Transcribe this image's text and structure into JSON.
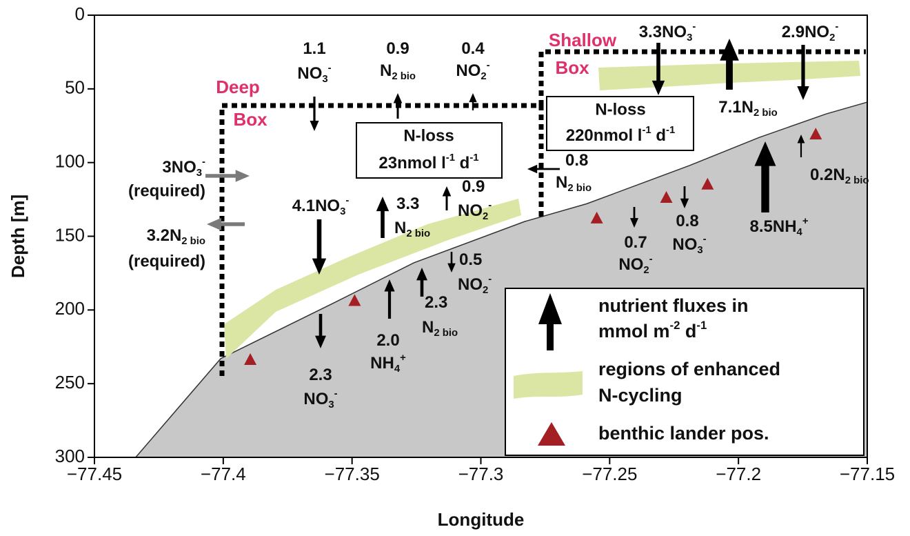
{
  "chart_data": {
    "type": "area",
    "xlabel": "Longitude",
    "ylabel": "Depth [m]",
    "xlim": [
      -77.45,
      -77.15
    ],
    "ylim": [
      0,
      300
    ],
    "y_inverted": true,
    "xticks": [
      {
        "value": -77.45,
        "label": "−77.45"
      },
      {
        "value": -77.4,
        "label": "−77.4"
      },
      {
        "value": -77.35,
        "label": "−77.35"
      },
      {
        "value": -77.3,
        "label": "−77.3"
      },
      {
        "value": -77.25,
        "label": "−77.25"
      },
      {
        "value": -77.2,
        "label": "−77.2"
      },
      {
        "value": -77.15,
        "label": "−77.15"
      }
    ],
    "yticks": [
      0,
      50,
      100,
      150,
      200,
      250,
      300
    ],
    "seafloor": {
      "color": "#c8c8c8",
      "x": [
        -77.434,
        -77.401,
        -77.358,
        -77.326,
        -77.283,
        -77.259,
        -77.219,
        -77.192,
        -77.166,
        -77.15
      ],
      "y": [
        300,
        233,
        196,
        168,
        140,
        128,
        102,
        83,
        67,
        59
      ]
    },
    "landers": {
      "color": "#a31f24",
      "x": [
        -77.3895,
        -77.349,
        -77.255,
        -77.228,
        -77.212,
        -77.17
      ],
      "y": [
        234,
        194,
        138,
        124,
        115,
        81
      ]
    },
    "boxes": [
      {
        "label": [
          "Deep",
          "Box"
        ],
        "loss": "N-loss",
        "rate": 23,
        "unit": [
          {
            "t": "nmol l"
          },
          {
            "sup": "-1"
          },
          {
            "t": " d"
          },
          {
            "sup": "-1"
          }
        ]
      },
      {
        "label": [
          "Shallow",
          "Box"
        ],
        "loss": "N-loss",
        "rate": 220,
        "unit": [
          {
            "t": "nmol l"
          },
          {
            "sup": "-1"
          },
          {
            "t": " d"
          },
          {
            "sup": "-1"
          }
        ]
      }
    ],
    "box_label_color": "#e0306a",
    "band_color": "#dbe6a4",
    "fluxes": [
      {
        "value": 1.1,
        "direction": "down",
        "species": [
          {
            "t": "NO"
          },
          {
            "sub": "3"
          },
          {
            "sup": "-"
          }
        ]
      },
      {
        "value": 0.9,
        "direction": "up",
        "species": [
          {
            "t": "N"
          },
          {
            "sub": "2 bio"
          }
        ]
      },
      {
        "value": 0.4,
        "direction": "up",
        "species": [
          {
            "t": "NO"
          },
          {
            "sub": "2"
          },
          {
            "sup": "-"
          }
        ]
      },
      {
        "value": 3.3,
        "direction": "down",
        "species": [
          {
            "t": "NO"
          },
          {
            "sub": "3"
          },
          {
            "sup": "-"
          }
        ]
      },
      {
        "value": 2.9,
        "direction": "down",
        "species": [
          {
            "t": "NO"
          },
          {
            "sub": "2"
          },
          {
            "sup": "-"
          }
        ]
      },
      {
        "value": 7.1,
        "direction": "up",
        "species": [
          {
            "t": "N"
          },
          {
            "sub": "2 bio"
          }
        ]
      },
      {
        "value": 3,
        "direction": "right",
        "note": "(required)",
        "color": "#7a7a7a",
        "species": [
          {
            "t": "NO"
          },
          {
            "sub": "3"
          },
          {
            "sup": "-"
          }
        ]
      },
      {
        "value": 3.2,
        "direction": "left",
        "note": "(required)",
        "color": "#7a7a7a",
        "species": [
          {
            "t": "N"
          },
          {
            "sub": "2 bio"
          }
        ]
      },
      {
        "value": 0.8,
        "direction": "left",
        "species": [
          {
            "t": "N"
          },
          {
            "sub": "2 bio"
          }
        ]
      },
      {
        "value": 4.1,
        "direction": "down",
        "species": [
          {
            "t": "NO"
          },
          {
            "sub": "3"
          },
          {
            "sup": "-"
          }
        ]
      },
      {
        "value": 3.3,
        "direction": "up",
        "species": [
          {
            "t": "N"
          },
          {
            "sub": "2 bio"
          }
        ]
      },
      {
        "value": 0.9,
        "direction": "up",
        "species": [
          {
            "t": "NO"
          },
          {
            "sub": "2"
          },
          {
            "sup": "-"
          }
        ]
      },
      {
        "value": 0.5,
        "direction": "down",
        "species": [
          {
            "t": "NO"
          },
          {
            "sub": "2"
          },
          {
            "sup": "-"
          }
        ]
      },
      {
        "value": 2.3,
        "direction": "up",
        "species": [
          {
            "t": "N"
          },
          {
            "sub": "2 bio"
          }
        ]
      },
      {
        "value": 2,
        "value_label": "2.0",
        "direction": "up",
        "species": [
          {
            "t": "NH"
          },
          {
            "sub": "4"
          },
          {
            "sup": "+"
          }
        ]
      },
      {
        "value": 2.3,
        "direction": "down",
        "species": [
          {
            "t": "NO"
          },
          {
            "sub": "3"
          },
          {
            "sup": "-"
          }
        ]
      },
      {
        "value": 0.7,
        "direction": "down",
        "species": [
          {
            "t": "NO"
          },
          {
            "sub": "2"
          },
          {
            "sup": "-"
          }
        ]
      },
      {
        "value": 0.8,
        "direction": "down",
        "species": [
          {
            "t": "NO"
          },
          {
            "sub": "3"
          },
          {
            "sup": "-"
          }
        ]
      },
      {
        "value": 8.5,
        "direction": "up",
        "species": [
          {
            "t": "NH"
          },
          {
            "sub": "4"
          },
          {
            "sup": "+"
          }
        ]
      },
      {
        "value": 0.2,
        "direction": "up",
        "species": [
          {
            "t": "N"
          },
          {
            "sub": "2 bio"
          }
        ]
      }
    ],
    "legend": {
      "flux": [
        [
          {
            "t": "nutrient fluxes in"
          }
        ],
        [
          {
            "t": "mmol m"
          },
          {
            "sup": "-2"
          },
          {
            "t": " d"
          },
          {
            "sup": "-1"
          }
        ]
      ],
      "band": [
        [
          {
            "t": "regions of enhanced"
          }
        ],
        [
          {
            "t": "N-cycling"
          }
        ]
      ],
      "lander": [
        [
          {
            "t": "benthic lander pos."
          }
        ]
      ]
    }
  }
}
